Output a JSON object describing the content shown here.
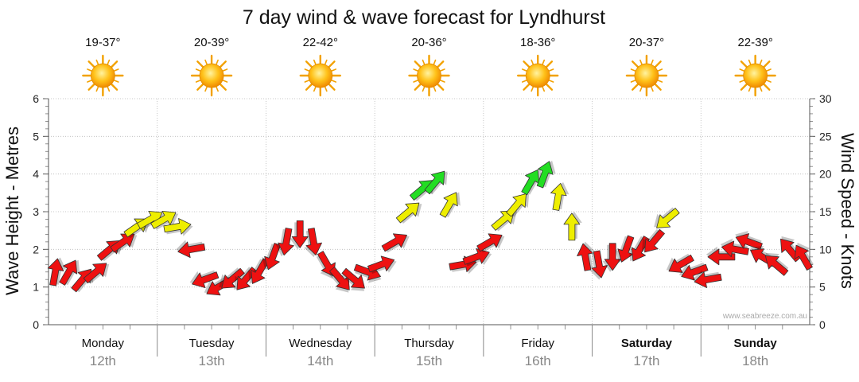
{
  "chart_data": {
    "type": "line",
    "title": "7 day wind & wave forecast for Lyndhurst",
    "ylabel_left": "Wave Height - Metres",
    "ylabel_right": "Wind Speed - Knots",
    "ylim_left": [
      0,
      6
    ],
    "ylim_right": [
      0,
      30
    ],
    "yticks_left": [
      "0",
      "1",
      "2",
      "3",
      "4",
      "5",
      "6"
    ],
    "yticks_right": [
      "0",
      "5",
      "10",
      "15",
      "20",
      "25",
      "30"
    ],
    "grid": true,
    "watermark": "www.seabreeze.com.au",
    "days": [
      {
        "day": "Monday",
        "date": "12th",
        "temp": "19-37°",
        "weekend": false
      },
      {
        "day": "Tuesday",
        "date": "13th",
        "temp": "20-39°",
        "weekend": false
      },
      {
        "day": "Wednesday",
        "date": "14th",
        "temp": "22-42°",
        "weekend": false
      },
      {
        "day": "Thursday",
        "date": "15th",
        "temp": "20-36°",
        "weekend": false
      },
      {
        "day": "Friday",
        "date": "16th",
        "temp": "18-36°",
        "weekend": false
      },
      {
        "day": "Saturday",
        "date": "17th",
        "temp": "20-37°",
        "weekend": true
      },
      {
        "day": "Sunday",
        "date": "18th",
        "temp": "22-39°",
        "weekend": true
      }
    ],
    "weather_icon": "sunny-icon",
    "wind_colors": {
      "low": "#ee1111",
      "mid": "#eeee00",
      "high": "#22dd22"
    },
    "wind_series": {
      "name": "Wind Speed (knots)",
      "x_hours": [
        0,
        3,
        6,
        9,
        12,
        15,
        18,
        21,
        24,
        27,
        30,
        33,
        36,
        39,
        42,
        45,
        48,
        51,
        54,
        57,
        60,
        63,
        66,
        69,
        72,
        75,
        78,
        81,
        84,
        87,
        90,
        93,
        96,
        99,
        102,
        105,
        108,
        111,
        114,
        117,
        120,
        123,
        126,
        129,
        132,
        135,
        138,
        141,
        144,
        147,
        150,
        153,
        156,
        159,
        162,
        165
      ],
      "speed": [
        7,
        7,
        6,
        7,
        10,
        11,
        13,
        14,
        14,
        13,
        10,
        6,
        5,
        6,
        6,
        7,
        9,
        11,
        12,
        11,
        8,
        6,
        6,
        7,
        8,
        11,
        15,
        18,
        19,
        16,
        8,
        9,
        11,
        14,
        16,
        19,
        20,
        17,
        13,
        9,
        8,
        9,
        10,
        10,
        11,
        14,
        8,
        7,
        6,
        9,
        10,
        11,
        9,
        8,
        10,
        9
      ],
      "dir_deg": [
        80,
        60,
        50,
        40,
        40,
        35,
        35,
        30,
        30,
        10,
        190,
        200,
        210,
        220,
        230,
        240,
        250,
        260,
        270,
        280,
        300,
        310,
        320,
        340,
        20,
        30,
        40,
        40,
        50,
        60,
        10,
        20,
        30,
        40,
        50,
        60,
        70,
        80,
        90,
        100,
        280,
        270,
        250,
        240,
        230,
        220,
        210,
        200,
        190,
        180,
        170,
        160,
        150,
        140,
        130,
        120
      ]
    }
  }
}
